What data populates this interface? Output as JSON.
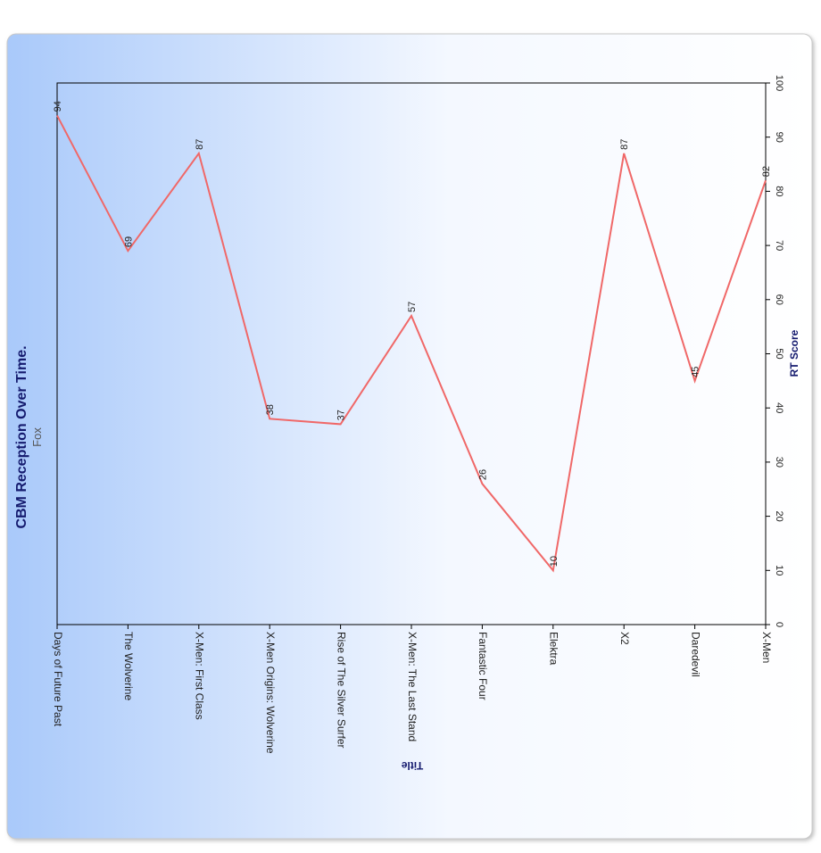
{
  "chart_data": {
    "type": "line",
    "title": "CBM Reception Over Time.",
    "subtitle": "Fox",
    "x_label": "Title",
    "y_label": "RT Score",
    "categories": [
      "Days of Future Past",
      "The Wolverine",
      "X-Men: First Class",
      "X-Men Origins: Wolverine",
      "Rise of The Silver Surfer",
      "X-Men: The Last Stand",
      "Fantastic Four",
      "Elektra",
      "X2",
      "Daredevil",
      "X-Men"
    ],
    "values": [
      94,
      69,
      87,
      38,
      37,
      57,
      26,
      10,
      87,
      45,
      82
    ],
    "color": "#f06868",
    "ylim": [
      0,
      100
    ],
    "yticks": [
      0,
      10,
      20,
      30,
      40,
      50,
      60,
      70,
      80,
      90,
      100
    ]
  }
}
